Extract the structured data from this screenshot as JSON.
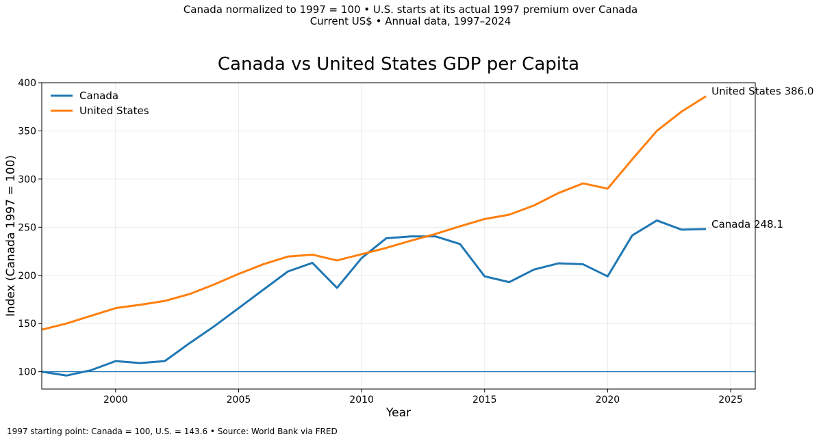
{
  "subtitle_line1": "Canada normalized to 1997 = 100 • U.S. starts at its actual 1997 premium over Canada",
  "subtitle_line2": "Current US$ • Annual data, 1997–2024",
  "footer_note": "1997 starting point: Canada = 100, U.S. = 143.6 • Source: World Bank via FRED",
  "colors": {
    "canada": "#1f77b4",
    "us": "#ff7f0e",
    "baseline": "#1f77b4",
    "grid": "#e6e6e6"
  },
  "chart_data": {
    "type": "line",
    "title": "Canada vs United States GDP per Capita",
    "xlabel": "Year",
    "ylabel": "Index (Canada 1997 = 100)",
    "xlim": [
      1997,
      2026
    ],
    "ylim": [
      82,
      400
    ],
    "xticks": [
      2000,
      2005,
      2010,
      2015,
      2020,
      2025
    ],
    "yticks": [
      100,
      150,
      200,
      250,
      300,
      350,
      400
    ],
    "grid": true,
    "legend_position": "top-left",
    "baseline": 100,
    "x": [
      1997,
      1998,
      1999,
      2000,
      2001,
      2002,
      2003,
      2004,
      2005,
      2006,
      2007,
      2008,
      2009,
      2010,
      2011,
      2012,
      2013,
      2014,
      2015,
      2016,
      2017,
      2018,
      2019,
      2020,
      2021,
      2022,
      2023,
      2024
    ],
    "series": [
      {
        "name": "Canada",
        "color_key": "canada",
        "end_label": "Canada  248.1",
        "values": [
          100,
          96,
          101.5,
          111,
          109,
          111,
          129.5,
          147,
          166,
          185,
          204,
          213,
          187,
          218,
          238.5,
          240.5,
          240.5,
          232.5,
          199,
          193,
          206,
          212.5,
          211.5,
          199,
          241.5,
          257,
          247.5,
          248.1
        ]
      },
      {
        "name": "United States",
        "color_key": "us",
        "end_label": "United States  386.0",
        "values": [
          143.6,
          150,
          158,
          166,
          169.5,
          173.5,
          180.5,
          190.5,
          201.5,
          211.5,
          219.5,
          221.5,
          215.5,
          222,
          228.5,
          236,
          243,
          251,
          258.5,
          263,
          272.5,
          285.5,
          295.5,
          290,
          320.5,
          350,
          370,
          386
        ]
      }
    ]
  }
}
